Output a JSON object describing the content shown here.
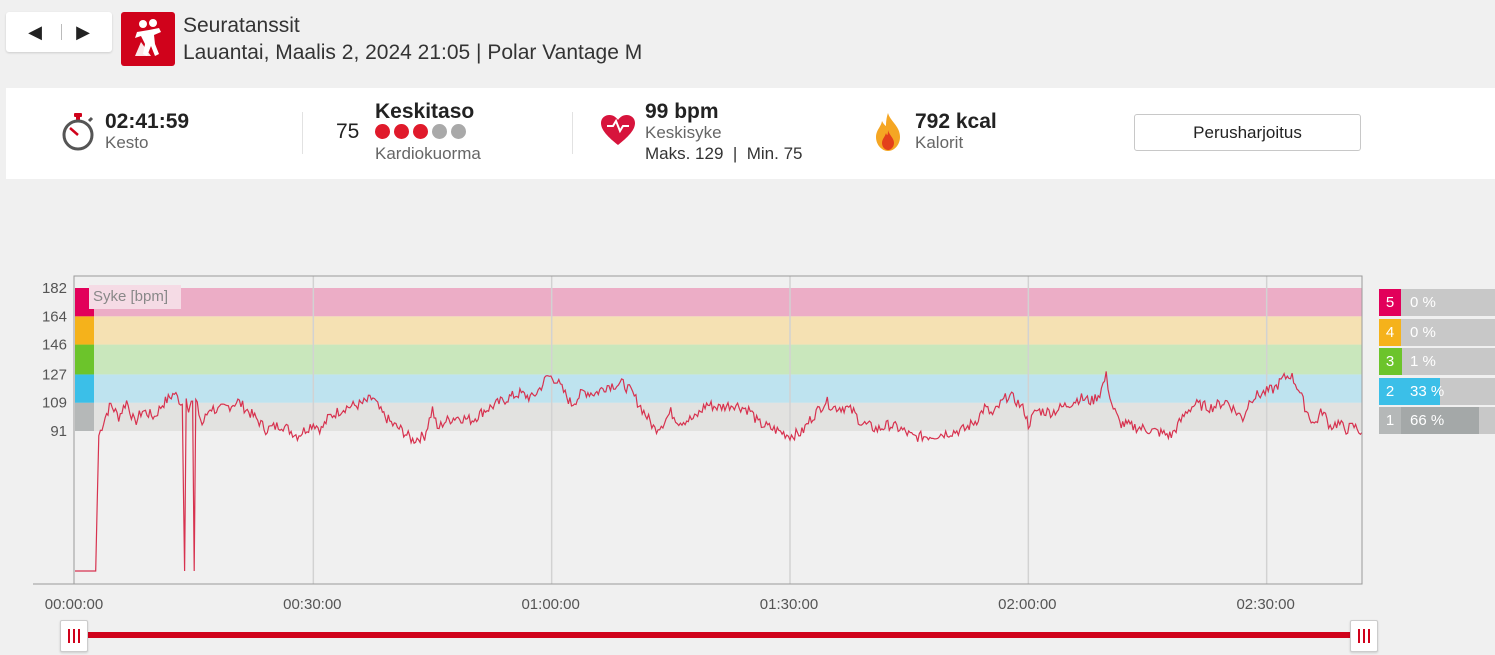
{
  "nav": {
    "prev_icon": "◀",
    "next_icon": "▶"
  },
  "session": {
    "sport": "Seuratanssit",
    "subtitle": "Lauantai, Maalis 2, 2024 21:05 | Polar Vantage M",
    "icon": "dancing-couple-icon"
  },
  "summary": {
    "duration": {
      "value": "02:41:59",
      "label": "Kesto",
      "icon": "stopwatch-icon"
    },
    "cardio": {
      "value": "75",
      "level": "Keskitaso",
      "label": "Kardiokuorma",
      "dots_filled": 3,
      "dots_total": 5
    },
    "heart_rate": {
      "value": "99 bpm",
      "label": "Keskisyke",
      "max_min": "Maks. 129  |  Min. 75",
      "icon": "heart-icon"
    },
    "calories": {
      "value": "792 kcal",
      "label": "Kalorit",
      "icon": "flame-icon"
    },
    "training_type_button": "Perusharjoitus"
  },
  "colors": {
    "accent": "#d0021b",
    "zone5": "#e2005a",
    "zone4": "#f5b21b",
    "zone3": "#6cc42b",
    "zone2": "#3bbfe8",
    "zone1": "#b5b8b8",
    "line": "#d7324f"
  },
  "zones": [
    {
      "num": "5",
      "pct": "0 %",
      "fraction": 0.0
    },
    {
      "num": "4",
      "pct": "0 %",
      "fraction": 0.0
    },
    {
      "num": "3",
      "pct": "1 %",
      "fraction": 0.01
    },
    {
      "num": "2",
      "pct": "33 %",
      "fraction": 0.33
    },
    {
      "num": "1",
      "pct": "66 %",
      "fraction": 0.66
    }
  ],
  "chart_data": {
    "type": "line",
    "series_label": "Syke [bpm]",
    "y_ticks": [
      182,
      164,
      146,
      127,
      109,
      91
    ],
    "zone_bounds": [
      91,
      109,
      127,
      146,
      164,
      182
    ],
    "x_ticks": [
      "00:00:00",
      "00:30:00",
      "01:00:00",
      "01:30:00",
      "02:00:00",
      "02:30:00"
    ],
    "x_tick_minutes": [
      0,
      30,
      60,
      90,
      120,
      150
    ],
    "xlim_minutes": [
      0,
      162
    ],
    "ylim": [
      0,
      188
    ],
    "anchors": [
      [
        0,
        0
      ],
      [
        2.6,
        0
      ],
      [
        3.0,
        88
      ],
      [
        3.8,
        100
      ],
      [
        4.5,
        108
      ],
      [
        5.5,
        100
      ],
      [
        6.5,
        110
      ],
      [
        7.5,
        96
      ],
      [
        8.5,
        104
      ],
      [
        10,
        100
      ],
      [
        11,
        108
      ],
      [
        12.5,
        115
      ],
      [
        13.5,
        108
      ],
      [
        13.8,
        0
      ],
      [
        14.0,
        112
      ],
      [
        14.3,
        106
      ],
      [
        14.8,
        110
      ],
      [
        15.0,
        0
      ],
      [
        15.2,
        110
      ],
      [
        16,
        95
      ],
      [
        17,
        106
      ],
      [
        18,
        104
      ],
      [
        19.5,
        107
      ],
      [
        20.5,
        110
      ],
      [
        21.5,
        105
      ],
      [
        23,
        98
      ],
      [
        24,
        92
      ],
      [
        26,
        95
      ],
      [
        28,
        88
      ],
      [
        30,
        96
      ],
      [
        31,
        92
      ],
      [
        32,
        100
      ],
      [
        34,
        106
      ],
      [
        36,
        108
      ],
      [
        37.5,
        112
      ],
      [
        38.5,
        103
      ],
      [
        40,
        95
      ],
      [
        41,
        92
      ],
      [
        42.5,
        85
      ],
      [
        44,
        88
      ],
      [
        45,
        105
      ],
      [
        45.6,
        92
      ],
      [
        46.5,
        97
      ],
      [
        48,
        100
      ],
      [
        50,
        98
      ],
      [
        51.5,
        104
      ],
      [
        53,
        108
      ],
      [
        54.5,
        112
      ],
      [
        56,
        115
      ],
      [
        57.5,
        112
      ],
      [
        58.5,
        118
      ],
      [
        59.5,
        126
      ],
      [
        60.5,
        124
      ],
      [
        61.5,
        116
      ],
      [
        62.5,
        108
      ],
      [
        64,
        116
      ],
      [
        65.5,
        115
      ],
      [
        67,
        120
      ],
      [
        69,
        121
      ],
      [
        70,
        116
      ],
      [
        71,
        108
      ],
      [
        72,
        100
      ],
      [
        73,
        92
      ],
      [
        74,
        96
      ],
      [
        75,
        103
      ],
      [
        76,
        97
      ],
      [
        78,
        99
      ],
      [
        79.5,
        108
      ],
      [
        81,
        106
      ],
      [
        83,
        108
      ],
      [
        85,
        104
      ],
      [
        86,
        96
      ],
      [
        88,
        92
      ],
      [
        90,
        88
      ],
      [
        91.5,
        90
      ],
      [
        92.5,
        98
      ],
      [
        93.5,
        104
      ],
      [
        94.5,
        110
      ],
      [
        95.5,
        106
      ],
      [
        97,
        106
      ],
      [
        98,
        103
      ],
      [
        99,
        96
      ],
      [
        100,
        94
      ],
      [
        101,
        92
      ],
      [
        102.5,
        95
      ],
      [
        104,
        92
      ],
      [
        105.5,
        87
      ],
      [
        108,
        88
      ],
      [
        110,
        90
      ],
      [
        112,
        92
      ],
      [
        113.5,
        98
      ],
      [
        114.5,
        106
      ],
      [
        115.5,
        101
      ],
      [
        116.5,
        108
      ],
      [
        117.5,
        114
      ],
      [
        118.5,
        110
      ],
      [
        119.5,
        104
      ],
      [
        120,
        95
      ],
      [
        121,
        104
      ],
      [
        123,
        103
      ],
      [
        125,
        108
      ],
      [
        126.5,
        112
      ],
      [
        128,
        110
      ],
      [
        129,
        115
      ],
      [
        129.8,
        126
      ],
      [
        130.5,
        108
      ],
      [
        131.5,
        96
      ],
      [
        133,
        94
      ],
      [
        135,
        92
      ],
      [
        136.5,
        90
      ],
      [
        138,
        88
      ],
      [
        139,
        96
      ],
      [
        140,
        104
      ],
      [
        141,
        108
      ],
      [
        143,
        106
      ],
      [
        145,
        110
      ],
      [
        146,
        104
      ],
      [
        147,
        99
      ],
      [
        148,
        112
      ],
      [
        150,
        116
      ],
      [
        151,
        118
      ],
      [
        152,
        124
      ],
      [
        153,
        127
      ],
      [
        154,
        118
      ],
      [
        155,
        104
      ],
      [
        156,
        95
      ],
      [
        157,
        104
      ],
      [
        158,
        94
      ],
      [
        159,
        96
      ],
      [
        160,
        92
      ],
      [
        161,
        94
      ],
      [
        162,
        90
      ]
    ],
    "grid": true
  },
  "range_slider": {
    "start_grip": "|||",
    "end_grip": "|||"
  }
}
